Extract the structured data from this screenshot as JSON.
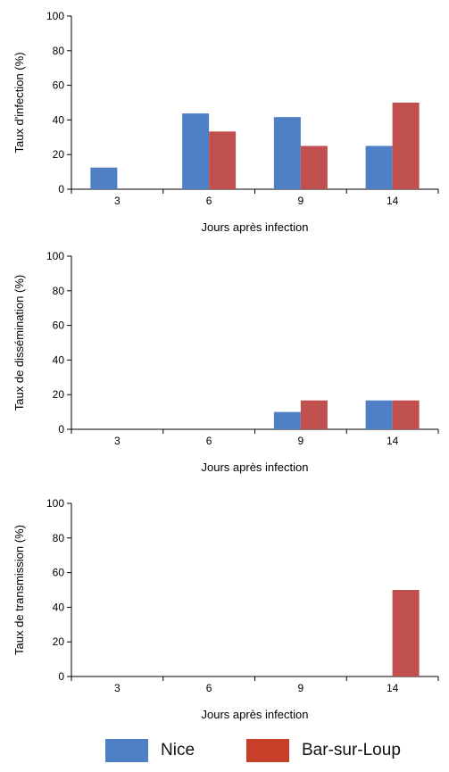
{
  "chart_data": [
    {
      "type": "bar",
      "categories": [
        "3",
        "6",
        "9",
        "14"
      ],
      "series": [
        {
          "name": "Nice",
          "values": [
            12.5,
            43.75,
            41.67,
            25
          ]
        },
        {
          "name": "Bar-sur-Loup",
          "values": [
            0,
            33.33,
            25,
            50
          ]
        }
      ],
      "xlabel": "Jours après infection",
      "ylabel": "Taux d'infection (%)",
      "ylim": [
        0,
        100
      ],
      "yticks": [
        0,
        20,
        40,
        60,
        80,
        100
      ]
    },
    {
      "type": "bar",
      "categories": [
        "3",
        "6",
        "9",
        "14"
      ],
      "series": [
        {
          "name": "Nice",
          "values": [
            0,
            0,
            10,
            16.67
          ]
        },
        {
          "name": "Bar-sur-Loup",
          "values": [
            0,
            0,
            16.67,
            16.67
          ]
        }
      ],
      "xlabel": "Jours après infection",
      "ylabel": "Taux de dissémination (%)",
      "ylim": [
        0,
        100
      ],
      "yticks": [
        0,
        20,
        40,
        60,
        80,
        100
      ]
    },
    {
      "type": "bar",
      "categories": [
        "3",
        "6",
        "9",
        "14"
      ],
      "series": [
        {
          "name": "Nice",
          "values": [
            0,
            0,
            0,
            0
          ]
        },
        {
          "name": "Bar-sur-Loup",
          "values": [
            0,
            0,
            0,
            50
          ]
        }
      ],
      "xlabel": "Jours après infection",
      "ylabel": "Taux de transmission (%)",
      "ylim": [
        0,
        100
      ],
      "yticks": [
        0,
        20,
        40,
        60,
        80,
        100
      ]
    }
  ],
  "legend": {
    "items": [
      {
        "label": "Nice",
        "color": "#4f7fc4"
      },
      {
        "label": "Bar-sur-Loup",
        "color": "#c8402a"
      }
    ]
  },
  "colors": {
    "Nice": "#4f7fc4",
    "Bar-sur-Loup": "#c0504d"
  }
}
